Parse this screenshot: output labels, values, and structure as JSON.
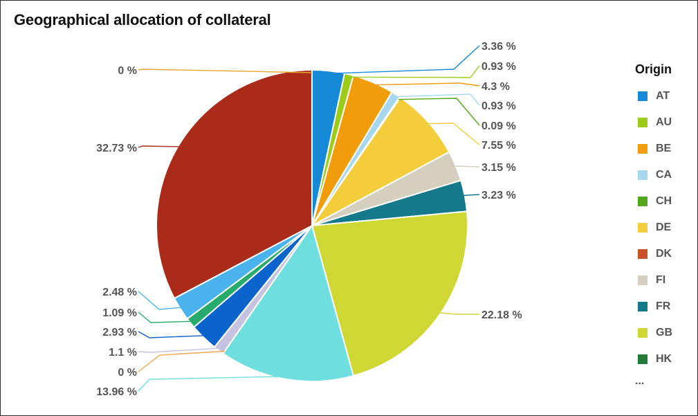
{
  "chart_data": {
    "type": "pie",
    "title": "Geographical allocation of collateral",
    "legend_title": "Origin",
    "legend_position": "right",
    "legend_more": "...",
    "legend": [
      {
        "name": "AT",
        "color": "#1689d7"
      },
      {
        "name": "AU",
        "color": "#9ccc19"
      },
      {
        "name": "BE",
        "color": "#f19c0b"
      },
      {
        "name": "CA",
        "color": "#a7d6ef"
      },
      {
        "name": "CH",
        "color": "#52a81a"
      },
      {
        "name": "DE",
        "color": "#f3cd3b"
      },
      {
        "name": "DK",
        "color": "#c9522b"
      },
      {
        "name": "FI",
        "color": "#d4cfbf"
      },
      {
        "name": "FR",
        "color": "#15798c"
      },
      {
        "name": "GB",
        "color": "#cfd734"
      },
      {
        "name": "HK",
        "color": "#237b3a"
      }
    ],
    "slices": [
      {
        "value": 3.36,
        "label": "3.36 %",
        "color": "#1689d7"
      },
      {
        "value": 0.93,
        "label": "0.93 %",
        "color": "#9ccc19"
      },
      {
        "value": 4.3,
        "label": "4.3 %",
        "color": "#f19c0b"
      },
      {
        "value": 0.93,
        "label": "0.93 %",
        "color": "#a7d6ef"
      },
      {
        "value": 0.09,
        "label": "0.09 %",
        "color": "#52a81a"
      },
      {
        "value": 7.55,
        "label": "7.55 %",
        "color": "#f3cd3b"
      },
      {
        "value": 3.15,
        "label": "3.15 %",
        "color": "#d4cfbf"
      },
      {
        "value": 3.23,
        "label": "3.23 %",
        "color": "#15798c"
      },
      {
        "value": 22.18,
        "label": "22.18 %",
        "color": "#cfd734"
      },
      {
        "value": 13.96,
        "label": "13.96 %",
        "color": "#6edfde"
      },
      {
        "value": 0,
        "label": "0 %",
        "color": "#f0a54a"
      },
      {
        "value": 1.1,
        "label": "1.1 %",
        "color": "#c5c3e0"
      },
      {
        "value": 2.93,
        "label": "2.93 %",
        "color": "#0b63cc"
      },
      {
        "value": 1.09,
        "label": "1.09 %",
        "color": "#27ab6c"
      },
      {
        "value": 2.48,
        "label": "2.48 %",
        "color": "#4ab2ec"
      },
      {
        "value": 32.73,
        "label": "32.73 %",
        "color": "#ab2b1a"
      },
      {
        "value": 0,
        "label": "0 %",
        "color": "#e8a431"
      }
    ]
  }
}
